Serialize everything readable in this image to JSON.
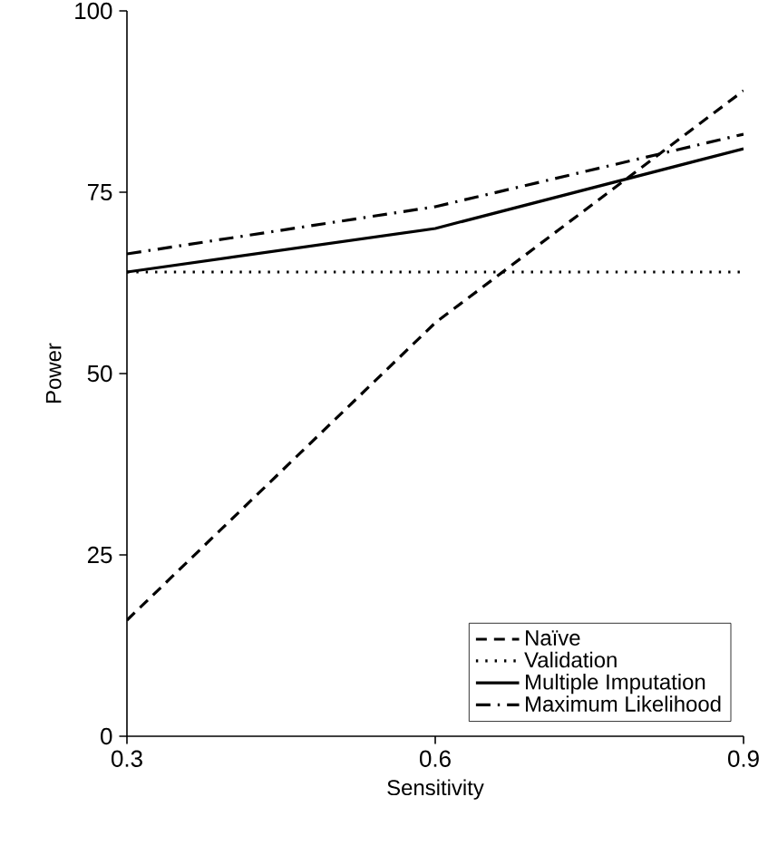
{
  "chart_data": {
    "type": "line",
    "xlabel": "Sensitivity",
    "ylabel": "Power",
    "x": [
      0.3,
      0.6,
      0.9
    ],
    "series": [
      {
        "name": "Naïve",
        "color": "#000000",
        "line_style": "dashed",
        "values": [
          16,
          57,
          89
        ]
      },
      {
        "name": "Validation",
        "color": "#000000",
        "line_style": "dotted",
        "values": [
          64,
          64,
          64
        ]
      },
      {
        "name": "Multiple Imputation",
        "color": "#000000",
        "line_style": "solid",
        "values": [
          64,
          70,
          81
        ]
      },
      {
        "name": "Maximum Likelihood",
        "color": "#000000",
        "line_style": "dashdot",
        "values": [
          66.5,
          73,
          83
        ]
      }
    ],
    "xlim": [
      0.3,
      0.9
    ],
    "ylim": [
      0,
      100
    ],
    "xticks": [
      0.3,
      0.6,
      0.9
    ],
    "yticks": [
      0,
      25,
      50,
      75,
      100
    ],
    "legend": "bottom right",
    "grid": false,
    "marker": "none"
  }
}
